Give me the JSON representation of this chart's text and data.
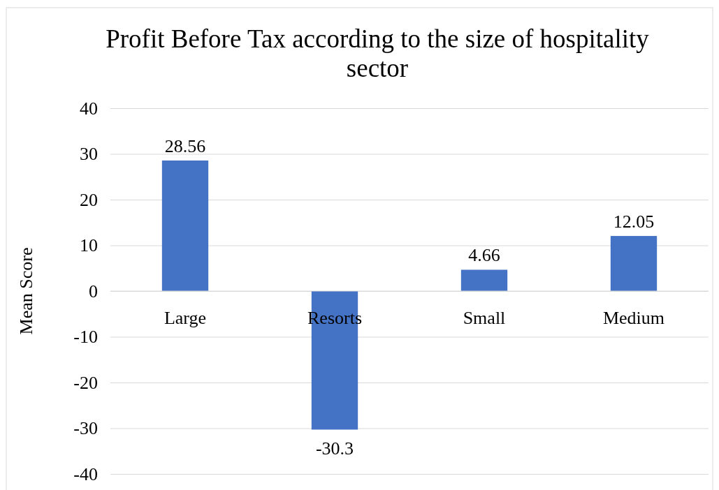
{
  "chart_data": {
    "type": "bar",
    "title": "Profit Before Tax according to the size of hospitality sector",
    "ylabel": "Mean Score",
    "categories": [
      "Large",
      "Resorts",
      "Small",
      "Medium"
    ],
    "values": [
      28.56,
      -30.3,
      4.66,
      12.05
    ],
    "color": "#4472c4",
    "ylim": [
      -40,
      40
    ],
    "yticks": [
      -40,
      -30,
      -20,
      -10,
      0,
      10,
      20,
      30,
      40
    ],
    "grid": "y",
    "data_labels": true
  }
}
